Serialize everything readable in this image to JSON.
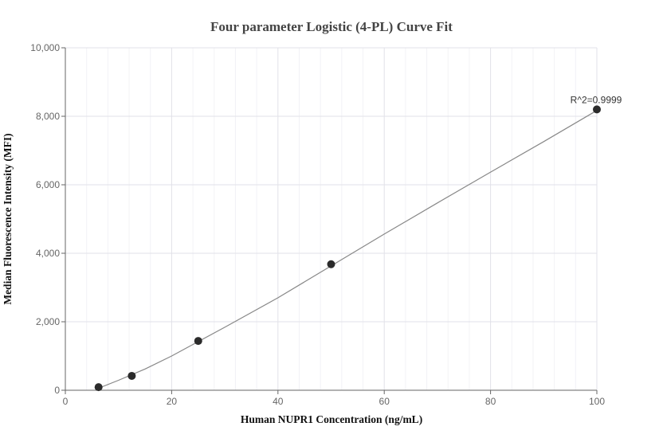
{
  "chart_data": {
    "type": "scatter",
    "title": "Four parameter Logistic (4-PL) Curve Fit",
    "xlabel": "Human NUPR1 Concentration (ng/mL)",
    "ylabel": "Median Fluorescence Intensity (MFI)",
    "xlim": [
      0,
      100
    ],
    "ylim": [
      0,
      10000
    ],
    "xticks": [
      0,
      20,
      40,
      60,
      80,
      100
    ],
    "xtick_labels": [
      "0",
      "20",
      "40",
      "60",
      "80",
      "100"
    ],
    "yticks": [
      0,
      2000,
      4000,
      6000,
      8000,
      10000
    ],
    "ytick_labels": [
      "0",
      "2,000",
      "4,000",
      "6,000",
      "8,000",
      "10,000"
    ],
    "grid": true,
    "points": {
      "x": [
        6.25,
        12.5,
        25,
        50,
        100
      ],
      "y": [
        90,
        420,
        1440,
        3680,
        8200
      ]
    },
    "fit_curve": {
      "x": [
        6.25,
        10,
        15,
        20,
        25,
        30,
        40,
        50,
        60,
        70,
        80,
        90,
        100
      ],
      "y": [
        60,
        290,
        620,
        1000,
        1420,
        1840,
        2700,
        3630,
        4560,
        5470,
        6370,
        7260,
        8170
      ]
    },
    "annotations": [
      {
        "text": "R^2=0.9999",
        "x": 100,
        "y": 8200
      }
    ]
  }
}
